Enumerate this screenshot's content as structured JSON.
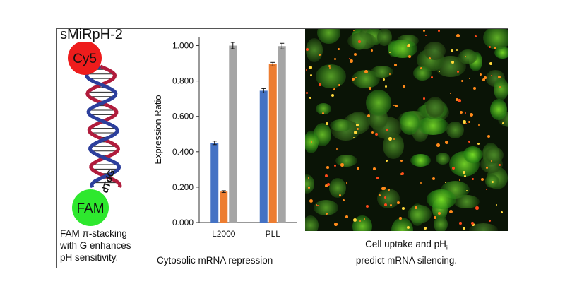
{
  "panel": {
    "title": "sMiRpH-2",
    "labels": {
      "top_dye": "Cy5",
      "bottom_dye": "FAM",
      "strand_label": "dTdG"
    },
    "caption_lines": [
      "FAM π-stacking",
      "with G enhances",
      "pH sensitivity."
    ]
  },
  "chart_caption": "Cytosolic mRNA repression",
  "image_caption": {
    "line1_prefix": "Cell uptake and pH",
    "line1_subscript": "i",
    "line2": "predict mRNA silencing."
  },
  "colors": {
    "cy5": "#ee1c1c",
    "fam": "#2ee82e",
    "helix_red": "#b01c3c",
    "helix_blue": "#2c3f9c"
  },
  "chart_data": {
    "type": "bar",
    "categories": [
      "L2000",
      "PLL"
    ],
    "series": [
      {
        "color": "#4472c4",
        "values": [
          0.45,
          0.745
        ],
        "errors": [
          0.01,
          0.012
        ]
      },
      {
        "color": "#ed7d31",
        "values": [
          0.175,
          0.895
        ],
        "errors": [
          0.005,
          0.01
        ]
      },
      {
        "color": "#a5a5a5",
        "values": [
          1.0,
          0.997
        ],
        "errors": [
          0.018,
          0.016
        ]
      }
    ],
    "xlabel": "",
    "ylabel": "Expression Ratio",
    "ylim": [
      0,
      1.05
    ],
    "yticks": [
      "0.000",
      "0.200",
      "0.400",
      "0.600",
      "0.800",
      "1.000"
    ],
    "grid": false
  }
}
